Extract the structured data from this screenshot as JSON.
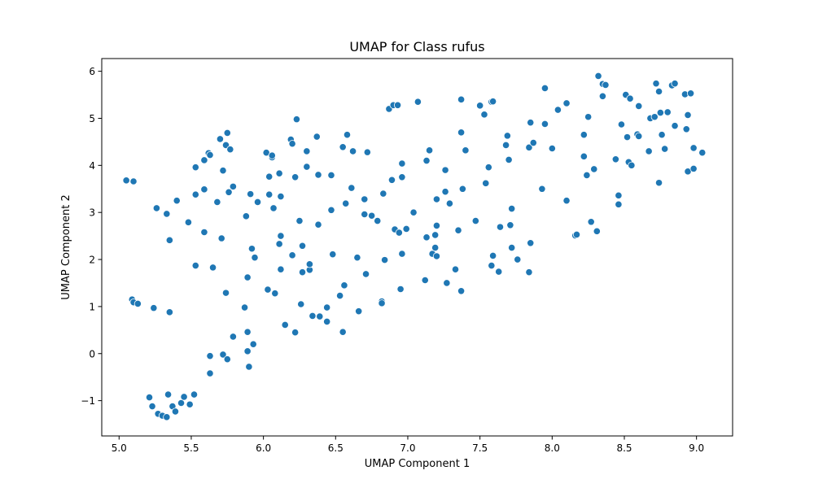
{
  "chart_data": {
    "type": "scatter",
    "title": "UMAP for Class rufus",
    "xlabel": "UMAP Component 1",
    "ylabel": "UMAP Component 2",
    "xlim": [
      4.88,
      9.25
    ],
    "ylim": [
      -1.75,
      6.27
    ],
    "xticks": [
      5.0,
      5.5,
      6.0,
      6.5,
      7.0,
      7.5,
      8.0,
      8.5,
      9.0
    ],
    "xtick_labels": [
      "5.0",
      "5.5",
      "6.0",
      "6.5",
      "7.0",
      "7.5",
      "8.0",
      "8.5",
      "9.0"
    ],
    "yticks": [
      -1,
      0,
      1,
      2,
      3,
      4,
      5,
      6
    ],
    "ytick_labels": [
      "−1",
      "0",
      "1",
      "2",
      "3",
      "4",
      "5",
      "6"
    ],
    "grid": false,
    "legend": "none",
    "marker_color": "#1f77b4",
    "marker_edge_color": "#ffffff",
    "points": [
      [
        5.05,
        3.68
      ],
      [
        5.1,
        3.66
      ],
      [
        5.26,
        3.09
      ],
      [
        5.33,
        2.97
      ],
      [
        5.4,
        3.25
      ],
      [
        5.35,
        2.41
      ],
      [
        5.09,
        1.15
      ],
      [
        5.1,
        1.09
      ],
      [
        5.13,
        1.06
      ],
      [
        5.24,
        0.97
      ],
      [
        5.35,
        0.88
      ],
      [
        5.21,
        -0.93
      ],
      [
        5.23,
        -1.12
      ],
      [
        5.27,
        -1.28
      ],
      [
        5.3,
        -1.32
      ],
      [
        5.33,
        -1.35
      ],
      [
        5.34,
        -0.87
      ],
      [
        5.37,
        -1.12
      ],
      [
        5.39,
        -1.23
      ],
      [
        5.43,
        -1.05
      ],
      [
        5.45,
        -0.92
      ],
      [
        5.49,
        -1.08
      ],
      [
        5.52,
        -0.87
      ],
      [
        5.48,
        2.79
      ],
      [
        5.53,
        3.38
      ],
      [
        5.53,
        3.96
      ],
      [
        5.59,
        4.11
      ],
      [
        5.59,
        3.49
      ],
      [
        5.59,
        2.58
      ],
      [
        5.62,
        4.26
      ],
      [
        5.63,
        4.22
      ],
      [
        5.53,
        1.87
      ],
      [
        5.65,
        1.83
      ],
      [
        5.68,
        3.22
      ],
      [
        5.7,
        4.56
      ],
      [
        5.72,
        3.89
      ],
      [
        5.71,
        2.45
      ],
      [
        5.74,
        4.43
      ],
      [
        5.75,
        4.69
      ],
      [
        5.76,
        3.43
      ],
      [
        5.77,
        4.34
      ],
      [
        5.79,
        3.55
      ],
      [
        5.74,
        1.29
      ],
      [
        5.63,
        -0.05
      ],
      [
        5.63,
        -0.42
      ],
      [
        5.72,
        -0.02
      ],
      [
        5.75,
        -0.12
      ],
      [
        5.79,
        0.36
      ],
      [
        5.87,
        0.98
      ],
      [
        5.88,
        2.92
      ],
      [
        5.89,
        1.62
      ],
      [
        5.89,
        0.46
      ],
      [
        5.89,
        0.05
      ],
      [
        5.9,
        -0.28
      ],
      [
        5.91,
        3.39
      ],
      [
        5.92,
        2.23
      ],
      [
        5.93,
        0.2
      ],
      [
        5.94,
        2.04
      ],
      [
        5.96,
        3.22
      ],
      [
        6.02,
        4.27
      ],
      [
        6.03,
        1.36
      ],
      [
        6.04,
        3.76
      ],
      [
        6.04,
        3.38
      ],
      [
        6.06,
        4.17
      ],
      [
        6.06,
        4.21
      ],
      [
        6.07,
        3.09
      ],
      [
        6.08,
        1.28
      ],
      [
        6.11,
        3.83
      ],
      [
        6.11,
        2.33
      ],
      [
        6.12,
        2.5
      ],
      [
        6.12,
        1.79
      ],
      [
        6.12,
        3.34
      ],
      [
        6.15,
        0.61
      ],
      [
        6.19,
        4.55
      ],
      [
        6.2,
        4.46
      ],
      [
        6.2,
        2.09
      ],
      [
        6.22,
        0.45
      ],
      [
        6.22,
        3.75
      ],
      [
        6.23,
        4.98
      ],
      [
        6.25,
        2.82
      ],
      [
        6.26,
        1.05
      ],
      [
        6.27,
        2.29
      ],
      [
        6.27,
        1.73
      ],
      [
        6.3,
        4.3
      ],
      [
        6.3,
        3.97
      ],
      [
        6.32,
        1.78
      ],
      [
        6.32,
        1.9
      ],
      [
        6.34,
        0.8
      ],
      [
        6.37,
        4.61
      ],
      [
        6.38,
        3.8
      ],
      [
        6.38,
        2.74
      ],
      [
        6.39,
        0.79
      ],
      [
        6.44,
        0.98
      ],
      [
        6.44,
        0.68
      ],
      [
        6.47,
        3.79
      ],
      [
        6.47,
        3.05
      ],
      [
        6.48,
        2.11
      ],
      [
        6.53,
        1.23
      ],
      [
        6.55,
        4.39
      ],
      [
        6.56,
        1.45
      ],
      [
        6.55,
        0.46
      ],
      [
        6.57,
        3.19
      ],
      [
        6.58,
        4.65
      ],
      [
        6.61,
        3.52
      ],
      [
        6.62,
        4.3
      ],
      [
        6.65,
        2.04
      ],
      [
        6.66,
        0.9
      ],
      [
        6.7,
        3.28
      ],
      [
        6.7,
        2.96
      ],
      [
        6.71,
        1.69
      ],
      [
        6.72,
        4.28
      ],
      [
        6.75,
        2.93
      ],
      [
        6.79,
        2.82
      ],
      [
        6.82,
        1.11
      ],
      [
        6.82,
        1.07
      ],
      [
        6.83,
        3.4
      ],
      [
        6.84,
        1.99
      ],
      [
        6.87,
        5.2
      ],
      [
        6.89,
        3.69
      ],
      [
        6.9,
        5.28
      ],
      [
        6.91,
        2.64
      ],
      [
        6.93,
        5.28
      ],
      [
        6.94,
        2.57
      ],
      [
        6.95,
        1.37
      ],
      [
        6.96,
        4.04
      ],
      [
        6.96,
        3.75
      ],
      [
        6.96,
        2.12
      ],
      [
        6.99,
        2.65
      ],
      [
        7.04,
        3.0
      ],
      [
        7.07,
        5.35
      ],
      [
        7.12,
        1.56
      ],
      [
        7.13,
        4.1
      ],
      [
        7.13,
        2.47
      ],
      [
        7.15,
        4.32
      ],
      [
        7.17,
        2.12
      ],
      [
        7.19,
        2.52
      ],
      [
        7.19,
        2.25
      ],
      [
        7.2,
        2.07
      ],
      [
        7.2,
        3.28
      ],
      [
        7.2,
        2.72
      ],
      [
        7.26,
        3.9
      ],
      [
        7.26,
        3.44
      ],
      [
        7.27,
        1.5
      ],
      [
        7.29,
        3.19
      ],
      [
        7.33,
        1.79
      ],
      [
        7.35,
        2.62
      ],
      [
        7.37,
        5.4
      ],
      [
        7.37,
        4.7
      ],
      [
        7.37,
        1.33
      ],
      [
        7.38,
        3.5
      ],
      [
        7.4,
        4.32
      ],
      [
        7.47,
        2.82
      ],
      [
        7.5,
        5.27
      ],
      [
        7.53,
        5.08
      ],
      [
        7.54,
        3.62
      ],
      [
        7.56,
        3.96
      ],
      [
        7.58,
        5.35
      ],
      [
        7.59,
        5.36
      ],
      [
        7.58,
        1.87
      ],
      [
        7.59,
        2.08
      ],
      [
        7.63,
        1.74
      ],
      [
        7.64,
        2.69
      ],
      [
        7.68,
        4.43
      ],
      [
        7.69,
        4.63
      ],
      [
        7.7,
        4.12
      ],
      [
        7.71,
        2.73
      ],
      [
        7.72,
        3.08
      ],
      [
        7.72,
        2.25
      ],
      [
        7.76,
        2.0
      ],
      [
        7.84,
        4.38
      ],
      [
        7.85,
        4.91
      ],
      [
        7.85,
        2.35
      ],
      [
        7.84,
        1.73
      ],
      [
        7.87,
        4.48
      ],
      [
        7.93,
        3.5
      ],
      [
        7.95,
        5.64
      ],
      [
        7.95,
        4.88
      ],
      [
        8.0,
        4.36
      ],
      [
        8.04,
        5.18
      ],
      [
        8.1,
        5.32
      ],
      [
        8.1,
        3.25
      ],
      [
        8.16,
        2.51
      ],
      [
        8.17,
        2.53
      ],
      [
        8.22,
        4.65
      ],
      [
        8.22,
        4.19
      ],
      [
        8.25,
        5.03
      ],
      [
        8.24,
        3.79
      ],
      [
        8.27,
        2.8
      ],
      [
        8.29,
        3.92
      ],
      [
        8.31,
        2.6
      ],
      [
        8.32,
        5.9
      ],
      [
        8.35,
        5.73
      ],
      [
        8.35,
        5.47
      ],
      [
        8.37,
        5.71
      ],
      [
        8.44,
        4.13
      ],
      [
        8.46,
        3.36
      ],
      [
        8.46,
        3.17
      ],
      [
        8.48,
        4.87
      ],
      [
        8.51,
        5.5
      ],
      [
        8.52,
        4.6
      ],
      [
        8.53,
        4.07
      ],
      [
        8.54,
        5.42
      ],
      [
        8.55,
        4.0
      ],
      [
        8.59,
        4.66
      ],
      [
        8.6,
        4.62
      ],
      [
        8.6,
        5.26
      ],
      [
        8.67,
        4.3
      ],
      [
        8.68,
        5.0
      ],
      [
        8.71,
        5.03
      ],
      [
        8.72,
        5.74
      ],
      [
        8.74,
        5.57
      ],
      [
        8.74,
        3.63
      ],
      [
        8.76,
        4.65
      ],
      [
        8.75,
        5.12
      ],
      [
        8.78,
        4.35
      ],
      [
        8.8,
        5.13
      ],
      [
        8.83,
        5.7
      ],
      [
        8.85,
        5.74
      ],
      [
        8.85,
        4.84
      ],
      [
        8.92,
        5.51
      ],
      [
        8.93,
        4.77
      ],
      [
        8.94,
        5.07
      ],
      [
        8.94,
        3.87
      ],
      [
        8.96,
        5.53
      ],
      [
        8.98,
        3.93
      ],
      [
        8.98,
        4.37
      ],
      [
        9.04,
        4.27
      ]
    ]
  }
}
